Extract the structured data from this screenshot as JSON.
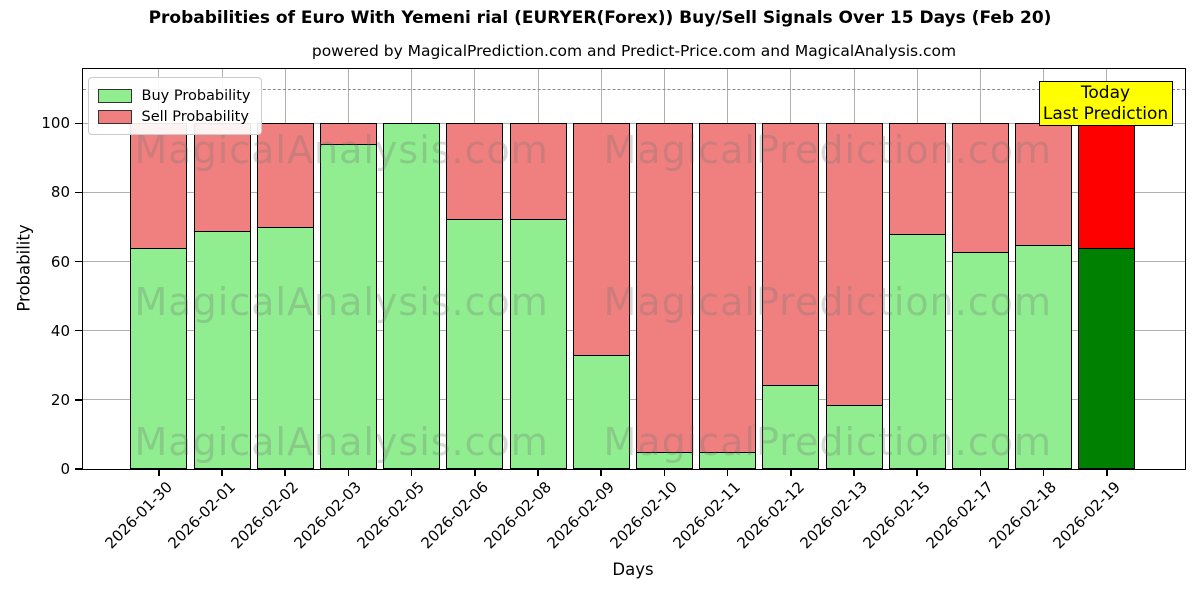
{
  "header": {
    "title": "Probabilities of Euro With Yemeni rial (EURYER(Forex)) Buy/Sell Signals Over 15 Days (Feb 20)",
    "subtitle": "powered by MagicalPrediction.com and Predict-Price.com and MagicalAnalysis.com"
  },
  "axes": {
    "ylabel": "Probability",
    "xlabel": "Days",
    "yticks": [
      0,
      20,
      40,
      60,
      80,
      100
    ],
    "threshold_line": 110,
    "ymax": 115.7,
    "grid": true
  },
  "legend": {
    "position": "upper-left",
    "items": [
      {
        "label": "Buy Probability",
        "color": "#90EE90"
      },
      {
        "label": "Sell Probability",
        "color": "#F08080"
      }
    ]
  },
  "annotation": {
    "lines": [
      "Today",
      "Last Prediction"
    ],
    "bg_color": "#FFFF00"
  },
  "watermarks": {
    "left_text": "MagicalAnalysis.com",
    "right_text": "MagicalPrediction.com"
  },
  "colors": {
    "buy": "#90EE90",
    "sell": "#F08080",
    "today_buy": "#008000",
    "today_sell": "#FF0000",
    "bar_edge": "#000000",
    "grid": "#b0b0b0"
  },
  "chart_data": {
    "type": "bar",
    "stacked": true,
    "title": "Probabilities of Euro With Yemeni rial (EURYER(Forex)) Buy/Sell Signals Over 15 Days (Feb 20)",
    "xlabel": "Days",
    "ylabel": "Probability",
    "ylim": [
      0,
      115.7
    ],
    "legend_position": "upper left",
    "categories": [
      "2026-01-30",
      "2026-02-01",
      "2026-02-02",
      "2026-02-03",
      "2026-02-05",
      "2026-02-06",
      "2026-02-08",
      "2026-02-09",
      "2026-02-10",
      "2026-02-11",
      "2026-02-12",
      "2026-02-13",
      "2026-02-15",
      "2026-02-17",
      "2026-02-18",
      "2026-02-19"
    ],
    "series": [
      {
        "name": "Buy Probability",
        "color": "#90EE90",
        "values": [
          64,
          69,
          70,
          94,
          100,
          72.5,
          72.5,
          33,
          5,
          5,
          24.5,
          18.5,
          68,
          63,
          65,
          64
        ]
      },
      {
        "name": "Sell Probability",
        "color": "#F08080",
        "values": [
          36,
          31,
          30,
          6,
          0,
          27.5,
          27.5,
          67,
          95,
          95,
          75.5,
          81.5,
          32,
          37,
          35,
          36
        ]
      }
    ],
    "today_bar": {
      "category": "2026-02-19",
      "buy_color": "#008000",
      "sell_color": "#FF0000"
    },
    "threshold_line_y": 110
  }
}
